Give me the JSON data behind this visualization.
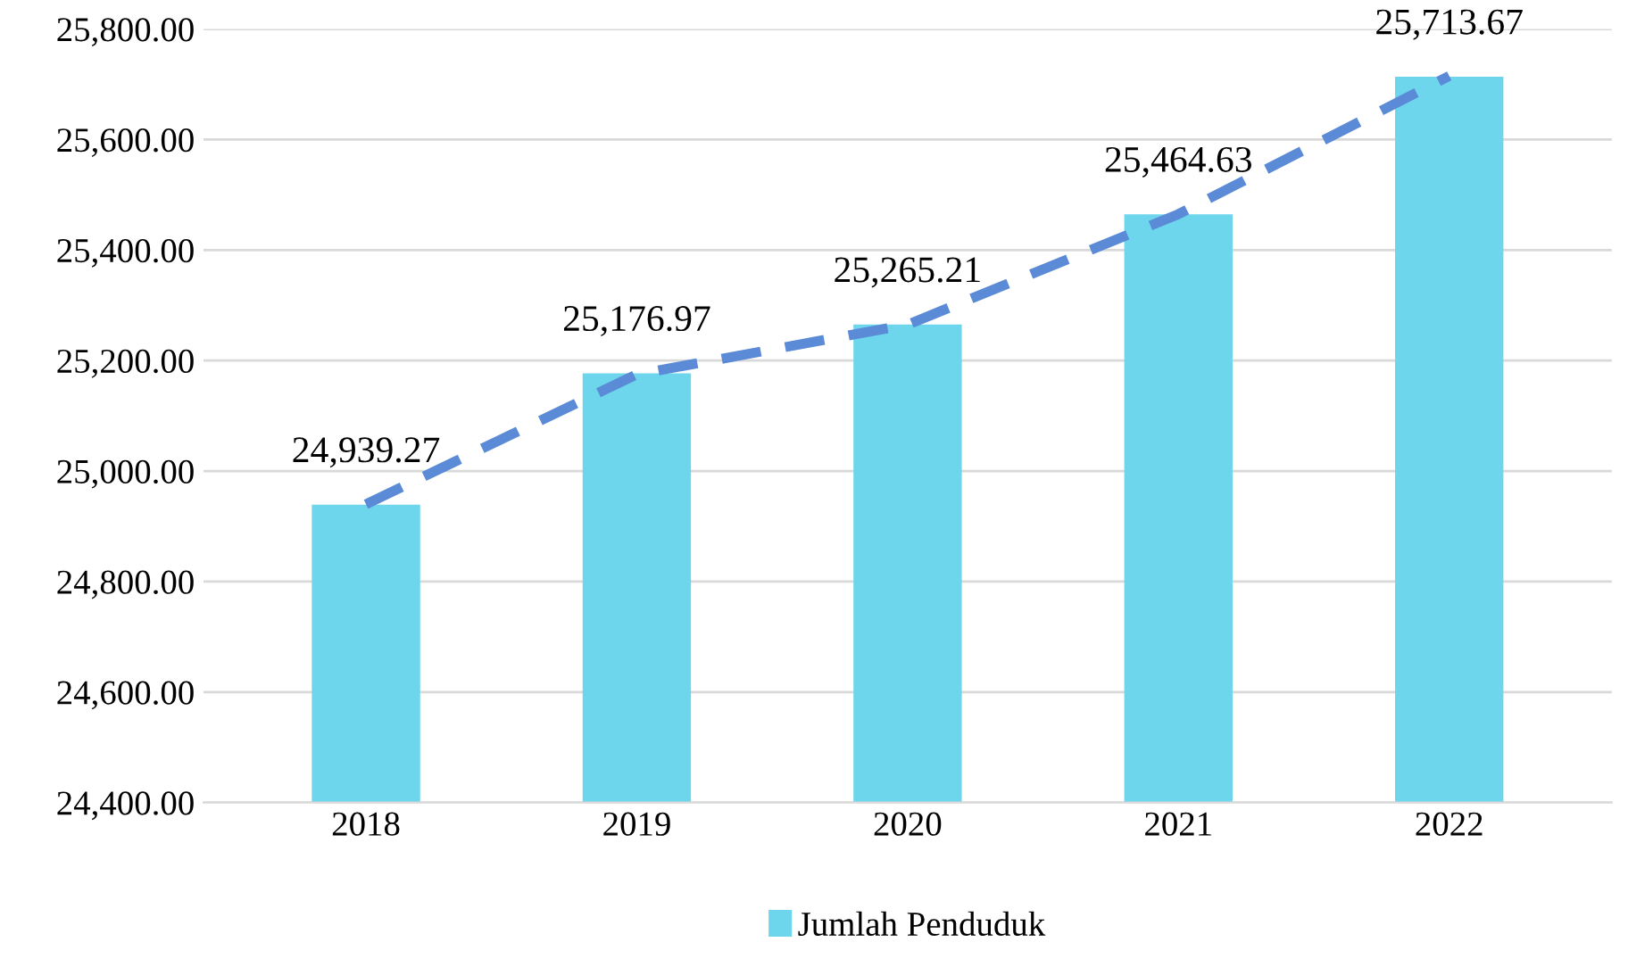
{
  "chart_data": {
    "type": "bar",
    "categories": [
      "2018",
      "2019",
      "2020",
      "2021",
      "2022"
    ],
    "series": [
      {
        "name": "Jumlah Penduduk",
        "color": "#6dd5ec",
        "values": [
          24939.27,
          25176.97,
          25265.21,
          25464.63,
          25713.67
        ],
        "value_labels": [
          "24,939.27",
          "25,176.97",
          "25,265.21",
          "25,464.63",
          "25,713.67"
        ]
      },
      {
        "type": "line",
        "color": "#5b8bd6",
        "line_style": "dashed",
        "marker": "none",
        "values": [
          24940,
          25175,
          25265,
          25465,
          25715
        ]
      }
    ],
    "ylim": [
      24400,
      25800
    ],
    "yticks": [
      {
        "value": 24400,
        "label": "24,400.00"
      },
      {
        "value": 24600,
        "label": "24,600.00"
      },
      {
        "value": 24800,
        "label": "24,800.00"
      },
      {
        "value": 25000,
        "label": "25,000.00"
      },
      {
        "value": 25200,
        "label": "25,200.00"
      },
      {
        "value": 25400,
        "label": "25,400.00"
      },
      {
        "value": 25600,
        "label": "25,600.00"
      },
      {
        "value": 25800,
        "label": "25,800.00"
      }
    ],
    "grid": "y",
    "legend": "bottom"
  }
}
